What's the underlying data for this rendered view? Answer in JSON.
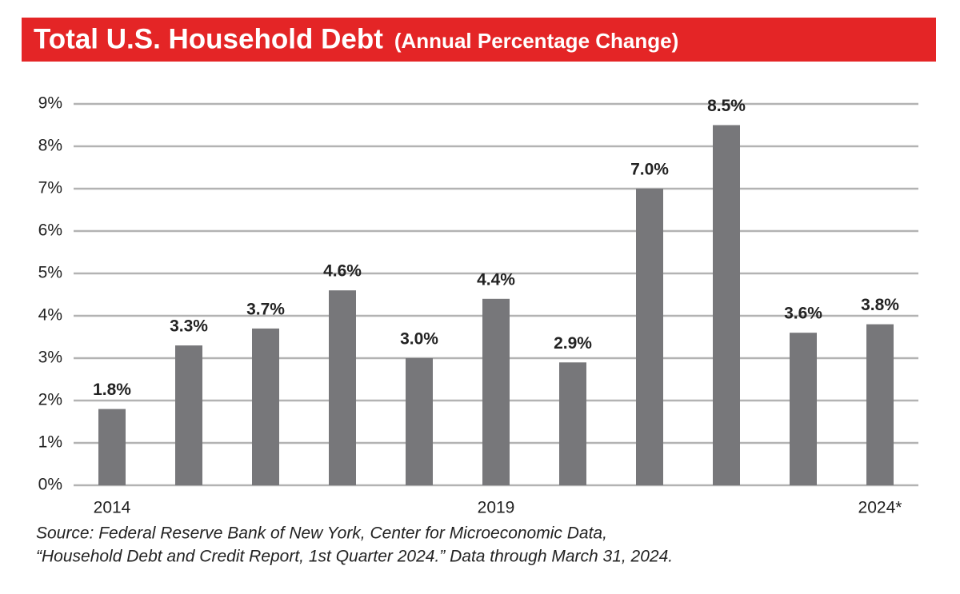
{
  "chart_data": {
    "type": "bar",
    "title": "Total U.S. Household Debt",
    "subtitle": "(Annual Percentage Change)",
    "categories": [
      "2014",
      null,
      null,
      null,
      null,
      "2019",
      null,
      null,
      null,
      null,
      "2024*"
    ],
    "values": [
      1.8,
      3.3,
      3.7,
      4.6,
      3.0,
      4.4,
      2.9,
      7.0,
      8.5,
      3.6,
      3.8
    ],
    "value_labels": [
      "1.8%",
      "3.3%",
      "3.7%",
      "4.6%",
      "3.0%",
      "4.4%",
      "2.9%",
      "7.0%",
      "8.5%",
      "3.6%",
      "3.8%"
    ],
    "color": "#77777a",
    "ylim": [
      0,
      9
    ],
    "yticks": [
      {
        "value": 0,
        "label": "0%"
      },
      {
        "value": 1,
        "label": "1%"
      },
      {
        "value": 2,
        "label": "2%"
      },
      {
        "value": 3,
        "label": "3%"
      },
      {
        "value": 4,
        "label": "4%"
      },
      {
        "value": 5,
        "label": "5%"
      },
      {
        "value": 6,
        "label": "6%"
      },
      {
        "value": 7,
        "label": "7%"
      },
      {
        "value": 8,
        "label": "8%"
      },
      {
        "value": 9,
        "label": "9%"
      }
    ],
    "grid": true,
    "source": [
      "Source: Federal Reserve Bank of New York, Center for Microeconomic Data,",
      "“Household Debt and Credit Report, 1st Quarter 2024.” Data through March 31, 2024."
    ]
  }
}
